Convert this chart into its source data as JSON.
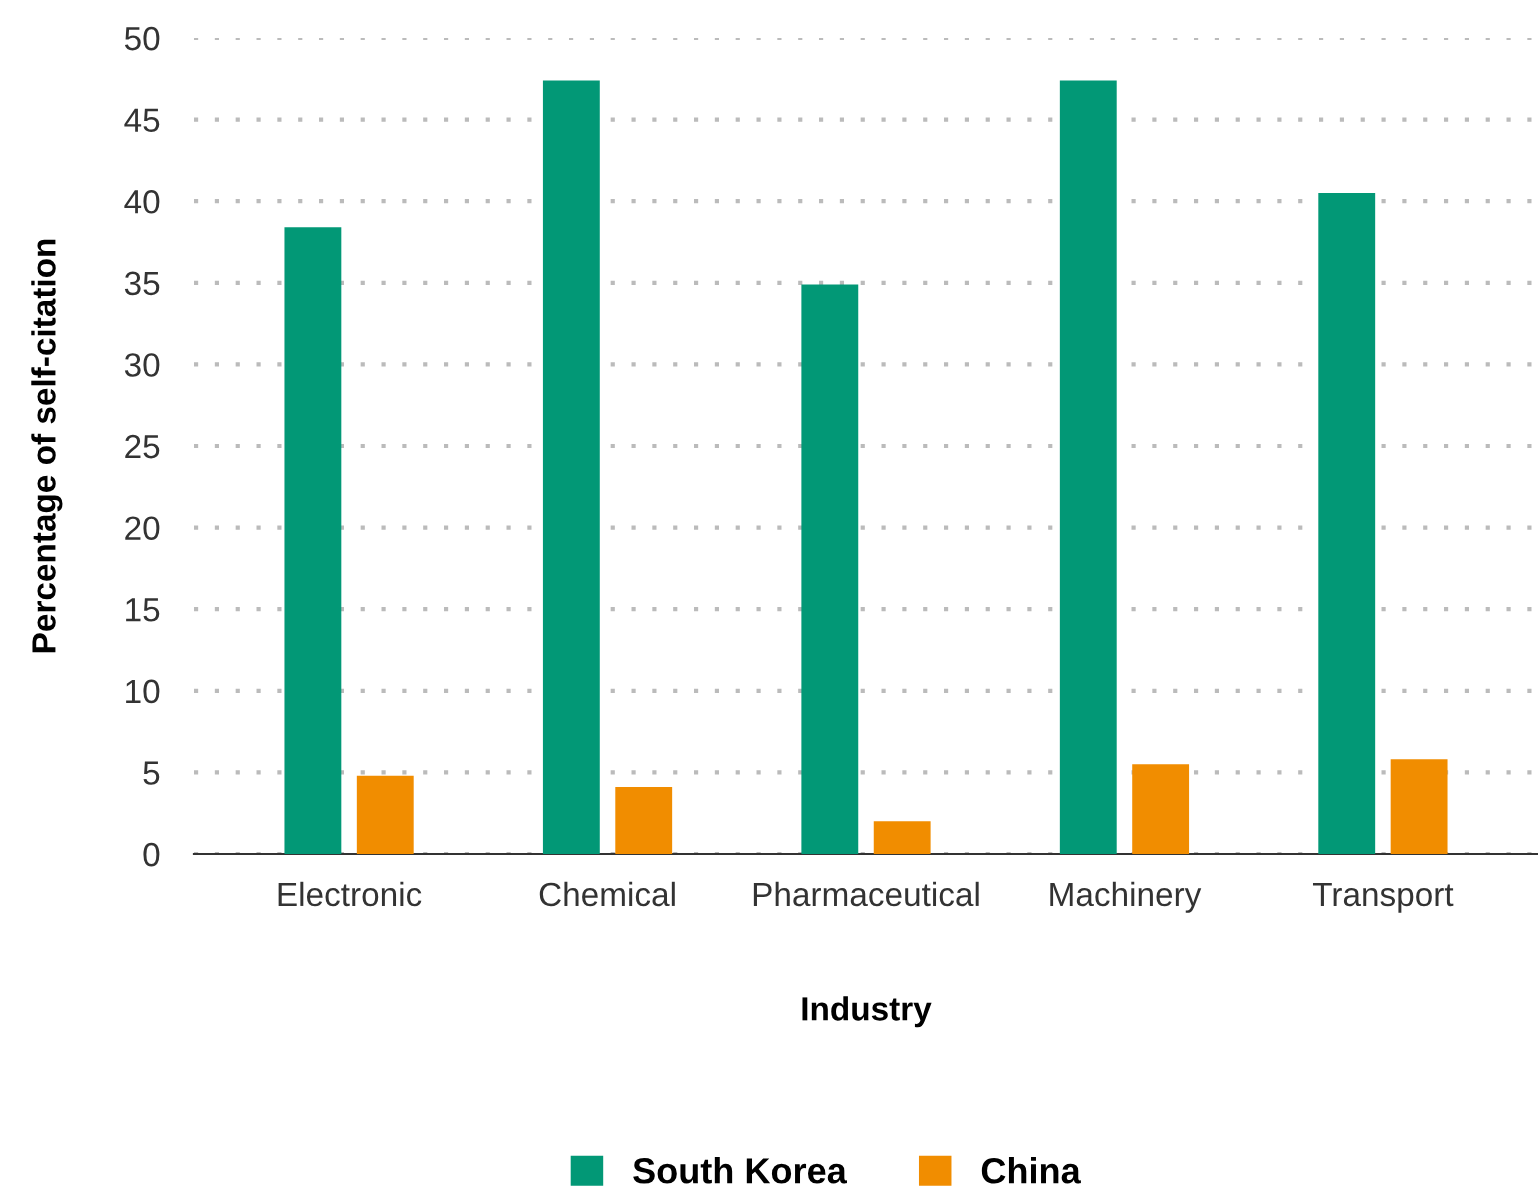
{
  "chart_data": {
    "type": "bar",
    "xlabel": "Industry",
    "ylabel": "Percentage of self-citation",
    "categories": [
      "Electronic",
      "Chemical",
      "Pharmaceutical",
      "Machinery",
      "Transport"
    ],
    "series": [
      {
        "name": "South Korea",
        "color": "#029876",
        "values": [
          38.4,
          47.4,
          34.9,
          47.4,
          40.5
        ]
      },
      {
        "name": "China",
        "color": "#f18d00",
        "values": [
          4.8,
          4.1,
          2.0,
          5.5,
          5.8
        ]
      }
    ],
    "ylim": [
      0,
      50
    ],
    "yticks": [
      0,
      5,
      10,
      15,
      20,
      25,
      30,
      35,
      40,
      45,
      50
    ],
    "grid": "y",
    "legend": "bottom"
  }
}
